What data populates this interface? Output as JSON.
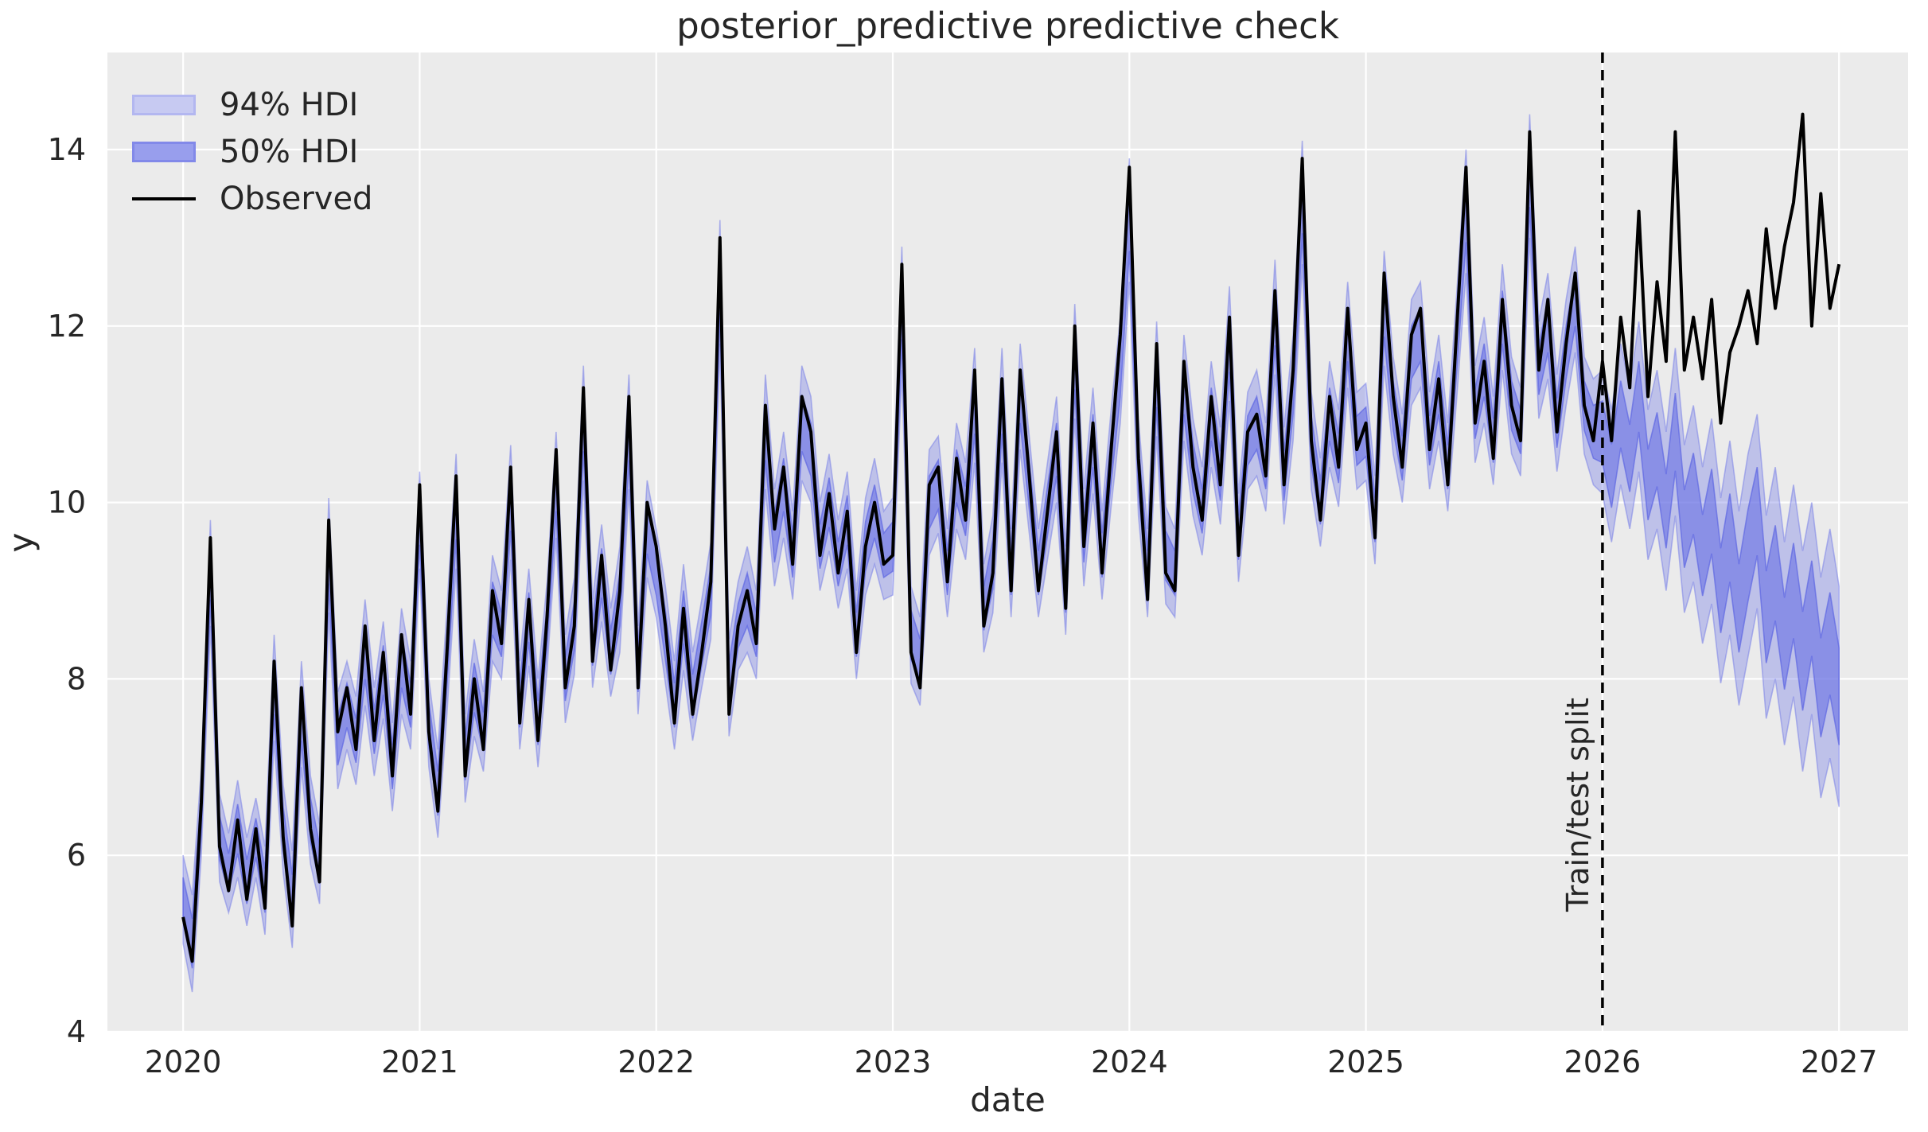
{
  "figure": {
    "background_color": "#ffffff",
    "plot_background_color": "#ebebeb",
    "grid_color": "#ffffff",
    "text_color": "#262626"
  },
  "legend": {
    "position": "upper left",
    "items": [
      {
        "label": "94% HDI",
        "type": "patch",
        "fill": "#c7caf2",
        "edge": "#b3b7f0",
        "swatch_style": "background:#c7caf2;border:3px solid #b3b7f0"
      },
      {
        "label": "50% HDI",
        "type": "patch",
        "fill": "#989eed",
        "edge": "#8289e9",
        "swatch_style": "background:#989eed;border:3px solid #8289e9"
      },
      {
        "label": "Observed",
        "type": "line",
        "color": "#000000",
        "swatch_style": "background:#000000"
      }
    ]
  },
  "chart_data": {
    "type": "line",
    "title": "posterior_predictive predictive check",
    "xlabel": "date",
    "ylabel": "y",
    "grid": true,
    "x_ticks": [
      2020,
      2021,
      2022,
      2023,
      2024,
      2025,
      2026,
      2027
    ],
    "y_ticks": [
      4,
      6,
      8,
      10,
      12,
      14
    ],
    "xlim": [
      2019.68,
      2027.292
    ],
    "ylim": [
      4,
      15.1
    ],
    "x_start": 2020.0,
    "x_step_years": 0.0384615,
    "split_line": {
      "x": 2026.0,
      "label": "Train/test split",
      "style": "dashed",
      "color": "#000000"
    },
    "style": {
      "plot_bg": "#ebebeb",
      "grid_color": "#ffffff",
      "observed_color": "#000000",
      "hdi94_fill": "rgba(122,129,231,0.40)",
      "hdi94_edge": "rgba(122,129,231,0.55)",
      "hdi50_fill": "rgba(104,112,228,0.60)",
      "hdi50_edge": "rgba(94,102,226,0.70)",
      "split_color": "#000000",
      "tick_color": "#262626"
    },
    "observed": [
      5.3,
      4.8,
      6.6,
      9.6,
      6.1,
      5.6,
      6.4,
      5.5,
      6.3,
      5.4,
      8.2,
      6.2,
      5.2,
      7.9,
      6.3,
      5.7,
      9.8,
      7.4,
      7.9,
      7.2,
      8.6,
      7.3,
      8.3,
      6.9,
      8.5,
      7.6,
      10.2,
      7.4,
      6.5,
      8.3,
      10.3,
      6.9,
      8.0,
      7.2,
      9.0,
      8.4,
      10.4,
      7.5,
      8.9,
      7.3,
      8.7,
      10.6,
      7.9,
      8.6,
      11.3,
      8.2,
      9.4,
      8.1,
      9.0,
      11.2,
      7.9,
      10.0,
      9.5,
      8.6,
      7.5,
      8.8,
      7.6,
      8.3,
      9.1,
      13.0,
      7.6,
      8.6,
      9.0,
      8.4,
      11.1,
      9.7,
      10.4,
      9.3,
      11.2,
      10.8,
      9.4,
      10.1,
      9.2,
      9.9,
      8.3,
      9.5,
      10.0,
      9.3,
      9.4,
      12.7,
      8.3,
      7.9,
      10.2,
      10.4,
      9.1,
      10.5,
      9.8,
      11.5,
      8.6,
      9.2,
      11.4,
      9.0,
      11.5,
      10.3,
      9.0,
      9.9,
      10.8,
      8.8,
      12.0,
      9.5,
      10.9,
      9.2,
      10.6,
      11.9,
      13.8,
      10.5,
      8.9,
      11.8,
      9.2,
      9.0,
      11.6,
      10.4,
      9.8,
      11.2,
      10.2,
      12.1,
      9.4,
      10.8,
      11.0,
      10.3,
      12.4,
      10.2,
      11.5,
      13.9,
      10.7,
      9.8,
      11.2,
      10.4,
      12.2,
      10.6,
      10.9,
      9.6,
      12.6,
      11.2,
      10.4,
      11.9,
      12.2,
      10.6,
      11.4,
      10.2,
      12.0,
      13.8,
      10.9,
      11.6,
      10.5,
      12.3,
      11.1,
      10.7,
      14.2,
      11.5,
      12.3,
      10.8,
      11.8,
      12.6,
      11.1,
      10.7,
      11.6,
      10.7,
      12.1,
      11.3,
      13.3,
      11.2,
      12.5,
      11.6,
      14.2,
      11.5,
      12.1,
      11.4,
      12.3,
      10.9,
      11.7,
      12.0,
      12.4,
      11.8,
      13.1,
      12.2,
      12.9,
      13.4,
      14.4,
      12.0,
      13.5,
      12.2,
      12.7
    ],
    "predicted_mean": [
      5.5,
      5.0,
      6.5,
      9.2,
      6.2,
      5.8,
      6.3,
      5.7,
      6.2,
      5.6,
      7.9,
      6.3,
      5.5,
      7.6,
      6.4,
      5.9,
      9.4,
      7.3,
      7.7,
      7.3,
      8.3,
      7.4,
      8.1,
      7.0,
      8.2,
      7.7,
      9.8,
      7.5,
      6.7,
      8.2,
      9.9,
      7.1,
      7.9,
      7.4,
      8.8,
      8.5,
      10.0,
      7.7,
      8.7,
      7.5,
      8.6,
      10.2,
      8.0,
      8.6,
      10.9,
      8.4,
      9.2,
      8.3,
      8.9,
      10.8,
      8.1,
      9.7,
      9.2,
      8.5,
      7.7,
      8.7,
      7.8,
      8.4,
      9.0,
      12.5,
      7.9,
      8.6,
      8.9,
      8.5,
      10.8,
      9.6,
      10.2,
      9.4,
      10.9,
      10.6,
      9.5,
      10.0,
      9.3,
      9.8,
      8.5,
      9.5,
      9.9,
      9.4,
      9.5,
      12.2,
      8.5,
      8.2,
      10.0,
      10.2,
      9.2,
      10.3,
      9.9,
      11.1,
      8.8,
      9.3,
      11.1,
      9.2,
      11.2,
      10.2,
      9.2,
      9.9,
      10.6,
      9.0,
      11.6,
      9.6,
      10.7,
      9.4,
      10.5,
      11.5,
      13.2,
      10.4,
      9.2,
      11.4,
      9.4,
      9.2,
      11.3,
      10.4,
      9.9,
      11.0,
      10.3,
      11.8,
      9.6,
      10.7,
      10.9,
      10.4,
      12.1,
      10.3,
      11.3,
      13.4,
      10.7,
      10.0,
      11.0,
      10.5,
      11.9,
      10.7,
      10.8,
      9.8,
      12.2,
      11.1,
      10.5,
      11.7,
      11.9,
      10.7,
      11.3,
      10.4,
      11.8,
      13.3,
      11.0,
      11.5,
      10.7,
      12.1,
      11.1,
      10.8,
      13.7,
      11.5,
      12.0,
      10.9,
      11.7,
      12.3,
      11.1,
      10.8,
      10.8,
      10.3,
      11.0,
      10.5,
      11.2,
      10.2,
      10.6,
      9.9,
      10.8,
      9.7,
      10.1,
      9.4,
      9.9,
      9.0,
      9.6,
      8.8,
      9.4,
      9.9,
      8.7,
      9.2,
      8.4,
      9.0,
      8.2,
      8.8,
      7.9,
      8.4,
      7.8
    ],
    "hdi94_half": [
      0.5,
      0.55,
      0.5,
      0.6,
      0.5,
      0.45,
      0.55,
      0.5,
      0.45,
      0.5,
      0.6,
      0.5,
      0.55,
      0.6,
      0.5,
      0.45,
      0.65,
      0.55,
      0.5,
      0.5,
      0.6,
      0.5,
      0.55,
      0.5,
      0.6,
      0.5,
      0.55,
      0.5,
      0.5,
      0.6,
      0.65,
      0.5,
      0.55,
      0.45,
      0.6,
      0.5,
      0.65,
      0.5,
      0.55,
      0.5,
      0.5,
      0.6,
      0.5,
      0.55,
      0.65,
      0.5,
      0.55,
      0.5,
      0.6,
      0.65,
      0.5,
      0.55,
      0.5,
      0.55,
      0.5,
      0.6,
      0.5,
      0.5,
      0.55,
      0.7,
      0.55,
      0.5,
      0.6,
      0.5,
      0.65,
      0.55,
      0.6,
      0.5,
      0.65,
      0.6,
      0.5,
      0.55,
      0.5,
      0.55,
      0.5,
      0.55,
      0.6,
      0.5,
      0.55,
      0.7,
      0.55,
      0.5,
      0.6,
      0.55,
      0.5,
      0.6,
      0.55,
      0.65,
      0.5,
      0.55,
      0.65,
      0.5,
      0.6,
      0.55,
      0.5,
      0.55,
      0.6,
      0.5,
      0.65,
      0.55,
      0.6,
      0.5,
      0.55,
      0.6,
      0.7,
      0.55,
      0.5,
      0.65,
      0.55,
      0.5,
      0.6,
      0.55,
      0.5,
      0.6,
      0.55,
      0.65,
      0.5,
      0.55,
      0.6,
      0.5,
      0.65,
      0.55,
      0.6,
      0.7,
      0.55,
      0.5,
      0.6,
      0.55,
      0.6,
      0.55,
      0.55,
      0.5,
      0.65,
      0.55,
      0.5,
      0.6,
      0.6,
      0.55,
      0.6,
      0.5,
      0.6,
      0.7,
      0.55,
      0.6,
      0.5,
      0.6,
      0.55,
      0.5,
      0.7,
      0.55,
      0.6,
      0.55,
      0.6,
      0.6,
      0.55,
      0.6,
      0.7,
      0.75,
      0.8,
      0.8,
      0.85,
      0.85,
      0.9,
      0.9,
      0.95,
      0.95,
      1.0,
      1.0,
      1.05,
      1.05,
      1.1,
      1.1,
      1.15,
      1.1,
      1.15,
      1.2,
      1.15,
      1.2,
      1.25,
      1.2,
      1.25,
      1.3,
      1.25
    ],
    "hdi50_half": [
      0.25,
      0.28,
      0.25,
      0.3,
      0.25,
      0.22,
      0.28,
      0.25,
      0.22,
      0.25,
      0.3,
      0.25,
      0.28,
      0.3,
      0.25,
      0.22,
      0.32,
      0.28,
      0.25,
      0.25,
      0.3,
      0.25,
      0.28,
      0.25,
      0.3,
      0.25,
      0.28,
      0.25,
      0.25,
      0.3,
      0.32,
      0.25,
      0.28,
      0.22,
      0.3,
      0.25,
      0.32,
      0.25,
      0.28,
      0.25,
      0.25,
      0.3,
      0.25,
      0.28,
      0.32,
      0.25,
      0.28,
      0.25,
      0.3,
      0.32,
      0.25,
      0.28,
      0.25,
      0.28,
      0.25,
      0.3,
      0.25,
      0.25,
      0.28,
      0.35,
      0.28,
      0.25,
      0.3,
      0.25,
      0.32,
      0.28,
      0.3,
      0.25,
      0.32,
      0.3,
      0.25,
      0.28,
      0.25,
      0.28,
      0.25,
      0.28,
      0.3,
      0.25,
      0.28,
      0.35,
      0.28,
      0.25,
      0.3,
      0.28,
      0.25,
      0.3,
      0.28,
      0.32,
      0.25,
      0.28,
      0.32,
      0.25,
      0.3,
      0.28,
      0.25,
      0.28,
      0.3,
      0.25,
      0.32,
      0.28,
      0.3,
      0.25,
      0.28,
      0.3,
      0.35,
      0.28,
      0.25,
      0.32,
      0.28,
      0.25,
      0.3,
      0.28,
      0.25,
      0.3,
      0.28,
      0.32,
      0.25,
      0.28,
      0.3,
      0.25,
      0.32,
      0.28,
      0.3,
      0.35,
      0.28,
      0.25,
      0.3,
      0.28,
      0.3,
      0.28,
      0.28,
      0.25,
      0.32,
      0.28,
      0.25,
      0.3,
      0.3,
      0.28,
      0.3,
      0.25,
      0.3,
      0.35,
      0.28,
      0.3,
      0.25,
      0.3,
      0.28,
      0.25,
      0.35,
      0.28,
      0.3,
      0.28,
      0.3,
      0.3,
      0.28,
      0.3,
      0.35,
      0.36,
      0.38,
      0.38,
      0.4,
      0.4,
      0.42,
      0.42,
      0.44,
      0.44,
      0.46,
      0.46,
      0.48,
      0.48,
      0.5,
      0.5,
      0.52,
      0.5,
      0.52,
      0.54,
      0.52,
      0.54,
      0.56,
      0.54,
      0.56,
      0.58,
      0.55
    ]
  }
}
